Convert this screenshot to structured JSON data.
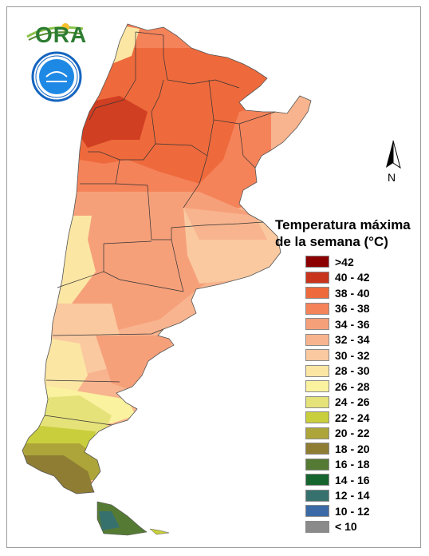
{
  "logo": {
    "text": "ORA",
    "seal_name": "smn-seal"
  },
  "north_arrow": {
    "label": "N"
  },
  "legend": {
    "title_line1": "Temperatura máxima",
    "title_line2": "de la semana (°C)",
    "items": [
      {
        "label": ">42",
        "color": "#8b0000"
      },
      {
        "label": "40 - 42",
        "color": "#c8341c"
      },
      {
        "label": "38 - 40",
        "color": "#ee6a3c"
      },
      {
        "label": "36 - 38",
        "color": "#f5835a"
      },
      {
        "label": "34 - 36",
        "color": "#f6a07a"
      },
      {
        "label": "32 - 34",
        "color": "#f8b48e"
      },
      {
        "label": "30 - 32",
        "color": "#fac9a0"
      },
      {
        "label": "28 - 30",
        "color": "#fce6a4"
      },
      {
        "label": "26 - 28",
        "color": "#fbf2a0"
      },
      {
        "label": "24 - 26",
        "color": "#e6e27a"
      },
      {
        "label": "22 - 24",
        "color": "#c9cf3c"
      },
      {
        "label": "20 - 22",
        "color": "#ada53a"
      },
      {
        "label": "18 - 20",
        "color": "#8f7d34"
      },
      {
        "label": "16 - 18",
        "color": "#557a34"
      },
      {
        "label": "14 - 16",
        "color": "#16642e"
      },
      {
        "label": "12 - 14",
        "color": "#36716e"
      },
      {
        "label": "10 - 12",
        "color": "#3b6aa6"
      },
      {
        "label": "< 10",
        "color": "#8a8a8a"
      }
    ]
  }
}
